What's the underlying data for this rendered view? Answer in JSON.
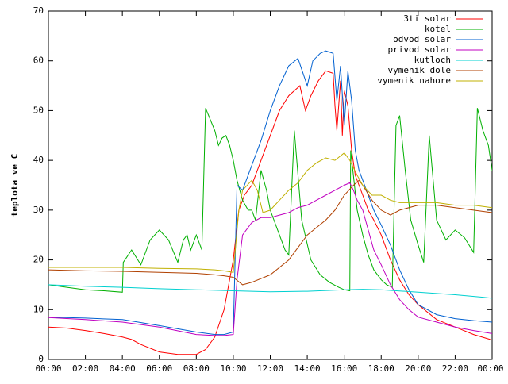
{
  "chart_data": {
    "type": "line",
    "title": "",
    "xlabel": "",
    "ylabel": "teplota ve C",
    "ylim": [
      0,
      70
    ],
    "xlim": [
      0,
      24
    ],
    "grid": false,
    "legend_position": "top-right",
    "y_ticks": [
      "0",
      "10",
      "20",
      "30",
      "40",
      "50",
      "60",
      "70"
    ],
    "x_ticks": [
      "00:00",
      "02:00",
      "04:00",
      "06:00",
      "08:00",
      "10:00",
      "12:00",
      "14:00",
      "16:00",
      "18:00",
      "20:00",
      "22:00",
      "00:00"
    ],
    "series": [
      {
        "name": "3ti solar",
        "color": "#ff0000",
        "points": [
          [
            0,
            6.5
          ],
          [
            1,
            6.3
          ],
          [
            2,
            5.8
          ],
          [
            3,
            5.2
          ],
          [
            4,
            4.5
          ],
          [
            4.5,
            4.0
          ],
          [
            5,
            3.0
          ],
          [
            6,
            1.5
          ],
          [
            7,
            1.0
          ],
          [
            8,
            1.0
          ],
          [
            8.5,
            2.0
          ],
          [
            9,
            4.5
          ],
          [
            9.5,
            10
          ],
          [
            10,
            20
          ],
          [
            10.3,
            30
          ],
          [
            10.6,
            33
          ],
          [
            11,
            35
          ],
          [
            11.5,
            40
          ],
          [
            12,
            45
          ],
          [
            12.5,
            50
          ],
          [
            13,
            53
          ],
          [
            13.6,
            55
          ],
          [
            13.9,
            50
          ],
          [
            14.2,
            53
          ],
          [
            14.6,
            56
          ],
          [
            15.0,
            58
          ],
          [
            15.4,
            57.5
          ],
          [
            15.5,
            51
          ],
          [
            15.6,
            46
          ],
          [
            15.8,
            56
          ],
          [
            15.9,
            45
          ],
          [
            16.0,
            54
          ],
          [
            16.2,
            51
          ],
          [
            16.4,
            42
          ],
          [
            16.6,
            37
          ],
          [
            16.8,
            35
          ],
          [
            17,
            33
          ],
          [
            17.3,
            30
          ],
          [
            17.6,
            28
          ],
          [
            18,
            25
          ],
          [
            18.5,
            20
          ],
          [
            19,
            16
          ],
          [
            19.5,
            13
          ],
          [
            20,
            11
          ],
          [
            21,
            8
          ],
          [
            22,
            6.5
          ],
          [
            23,
            5
          ],
          [
            23.9,
            4
          ]
        ]
      },
      {
        "name": "kotel",
        "color": "#00b000",
        "points": [
          [
            0,
            15
          ],
          [
            1,
            14.5
          ],
          [
            2,
            14
          ],
          [
            3,
            13.8
          ],
          [
            4.0,
            13.5
          ],
          [
            4.05,
            19.5
          ],
          [
            4.5,
            22
          ],
          [
            5,
            19
          ],
          [
            5.5,
            24
          ],
          [
            6,
            26
          ],
          [
            6.5,
            24
          ],
          [
            7,
            19.5
          ],
          [
            7.3,
            24
          ],
          [
            7.5,
            25
          ],
          [
            7.7,
            22
          ],
          [
            8,
            25
          ],
          [
            8.3,
            22
          ],
          [
            8.5,
            50.5
          ],
          [
            9,
            46
          ],
          [
            9.2,
            43
          ],
          [
            9.4,
            44.5
          ],
          [
            9.6,
            45.0
          ],
          [
            9.8,
            43
          ],
          [
            10,
            40
          ],
          [
            10.2,
            36
          ],
          [
            10.5,
            32
          ],
          [
            10.8,
            30
          ],
          [
            11,
            30
          ],
          [
            11.2,
            28
          ],
          [
            11.5,
            38
          ],
          [
            11.8,
            34
          ],
          [
            12,
            30
          ],
          [
            12.5,
            25
          ],
          [
            12.8,
            22
          ],
          [
            13.0,
            21
          ],
          [
            13.3,
            46
          ],
          [
            13.7,
            28
          ],
          [
            14.2,
            20
          ],
          [
            14.7,
            17
          ],
          [
            15.2,
            15.5
          ],
          [
            15.7,
            14.5
          ],
          [
            16.0,
            14
          ],
          [
            16.3,
            13.8
          ],
          [
            16.35,
            42
          ],
          [
            16.7,
            30
          ],
          [
            17,
            25
          ],
          [
            17.3,
            21
          ],
          [
            17.6,
            18
          ],
          [
            18,
            16
          ],
          [
            18.3,
            15
          ],
          [
            18.6,
            14.5
          ],
          [
            18.8,
            47
          ],
          [
            19.0,
            49
          ],
          [
            19.3,
            38
          ],
          [
            19.6,
            28
          ],
          [
            20,
            23
          ],
          [
            20.3,
            19.5
          ],
          [
            20.6,
            45
          ],
          [
            21,
            28
          ],
          [
            21.5,
            24
          ],
          [
            22,
            26
          ],
          [
            22.5,
            24.5
          ],
          [
            23.0,
            21.5
          ],
          [
            23.2,
            50.5
          ],
          [
            23.5,
            46
          ],
          [
            23.8,
            43
          ],
          [
            24,
            38
          ],
          [
            24.6,
            32
          ],
          [
            25,
            48.5
          ]
        ]
      },
      {
        "name": "odvod solar",
        "color": "#0060d0",
        "points": [
          [
            0,
            8.5
          ],
          [
            2,
            8.3
          ],
          [
            4,
            8.0
          ],
          [
            6,
            6.8
          ],
          [
            8,
            5.5
          ],
          [
            9,
            5.0
          ],
          [
            9.5,
            5.0
          ],
          [
            10,
            5.5
          ],
          [
            10.2,
            35
          ],
          [
            10.5,
            34
          ],
          [
            11,
            39
          ],
          [
            11.5,
            44
          ],
          [
            12,
            50
          ],
          [
            12.5,
            55
          ],
          [
            13,
            59
          ],
          [
            13.5,
            60.5
          ],
          [
            14,
            55
          ],
          [
            14.3,
            60
          ],
          [
            14.7,
            61.5
          ],
          [
            15.0,
            62
          ],
          [
            15.4,
            61.5
          ],
          [
            15.6,
            52
          ],
          [
            15.8,
            59
          ],
          [
            16.0,
            47
          ],
          [
            16.2,
            58
          ],
          [
            16.4,
            52
          ],
          [
            16.6,
            42
          ],
          [
            16.8,
            38
          ],
          [
            17.0,
            36
          ],
          [
            17.3,
            33
          ],
          [
            17.6,
            30
          ],
          [
            18,
            27
          ],
          [
            18.5,
            23
          ],
          [
            19,
            18
          ],
          [
            19.5,
            14
          ],
          [
            20,
            11
          ],
          [
            21,
            9
          ],
          [
            22,
            8.2
          ],
          [
            23,
            7.8
          ],
          [
            24,
            7.5
          ]
        ]
      },
      {
        "name": "privod solar",
        "color": "#c000c0",
        "points": [
          [
            0,
            8.4
          ],
          [
            2,
            8.0
          ],
          [
            4,
            7.5
          ],
          [
            6,
            6.5
          ],
          [
            8,
            5.0
          ],
          [
            9,
            4.8
          ],
          [
            9.5,
            4.8
          ],
          [
            10,
            5.0
          ],
          [
            10.2,
            16
          ],
          [
            10.5,
            25
          ],
          [
            11,
            27.5
          ],
          [
            11.5,
            28.5
          ],
          [
            12,
            28.5
          ],
          [
            12.5,
            29
          ],
          [
            13,
            29.5
          ],
          [
            13.5,
            30.5
          ],
          [
            14,
            31
          ],
          [
            14.5,
            32
          ],
          [
            15,
            33
          ],
          [
            15.5,
            34
          ],
          [
            16.0,
            35
          ],
          [
            16.3,
            35.5
          ],
          [
            16.5,
            34
          ],
          [
            16.7,
            32
          ],
          [
            17,
            30
          ],
          [
            17.3,
            26
          ],
          [
            17.6,
            22
          ],
          [
            18,
            19
          ],
          [
            18.5,
            15
          ],
          [
            19,
            12
          ],
          [
            19.5,
            10
          ],
          [
            20,
            8.5
          ],
          [
            21,
            7.5
          ],
          [
            22,
            6.5
          ],
          [
            23,
            5.8
          ],
          [
            24,
            5.2
          ]
        ]
      },
      {
        "name": "kutloch",
        "color": "#00d0d0",
        "points": [
          [
            0,
            15
          ],
          [
            2,
            14.7
          ],
          [
            4,
            14.5
          ],
          [
            6,
            14.2
          ],
          [
            8,
            14.0
          ],
          [
            10,
            13.8
          ],
          [
            12,
            13.6
          ],
          [
            14,
            13.7
          ],
          [
            16,
            14.0
          ],
          [
            17,
            14.1
          ],
          [
            18,
            14.0
          ],
          [
            20,
            13.5
          ],
          [
            22,
            13.0
          ],
          [
            23.5,
            12.5
          ],
          [
            24,
            12.3
          ]
        ]
      },
      {
        "name": "vymenik dole",
        "color": "#b04000",
        "points": [
          [
            0,
            18
          ],
          [
            2,
            17.8
          ],
          [
            4,
            17.7
          ],
          [
            6,
            17.5
          ],
          [
            8,
            17.3
          ],
          [
            9,
            17.0
          ],
          [
            9.5,
            16.8
          ],
          [
            10,
            16.5
          ],
          [
            10.5,
            15.0
          ],
          [
            11,
            15.5
          ],
          [
            12,
            17
          ],
          [
            13,
            20
          ],
          [
            14,
            25
          ],
          [
            15,
            28
          ],
          [
            15.5,
            30
          ],
          [
            16,
            33
          ],
          [
            16.5,
            35
          ],
          [
            16.8,
            36
          ],
          [
            17,
            35
          ],
          [
            17.5,
            32
          ],
          [
            18,
            30
          ],
          [
            18.5,
            29
          ],
          [
            19,
            30
          ],
          [
            20,
            31
          ],
          [
            21,
            31
          ],
          [
            22,
            30.5
          ],
          [
            23,
            30
          ],
          [
            24,
            29.5
          ],
          [
            24.5,
            27
          ],
          [
            25,
            26
          ]
        ]
      },
      {
        "name": "vymenik nahore",
        "color": "#c0b000",
        "points": [
          [
            0,
            18.5
          ],
          [
            2,
            18.5
          ],
          [
            4,
            18.5
          ],
          [
            6,
            18.3
          ],
          [
            8,
            18.2
          ],
          [
            9,
            18.0
          ],
          [
            9.5,
            17.8
          ],
          [
            10,
            17.5
          ],
          [
            10.3,
            30
          ],
          [
            10.5,
            34
          ],
          [
            11,
            36
          ],
          [
            11.3,
            34
          ],
          [
            11.6,
            29.5
          ],
          [
            12,
            30
          ],
          [
            12.5,
            32
          ],
          [
            13,
            34
          ],
          [
            13.5,
            35.5
          ],
          [
            14,
            38
          ],
          [
            14.5,
            39.5
          ],
          [
            15,
            40.5
          ],
          [
            15.5,
            40
          ],
          [
            16,
            41.5
          ],
          [
            16.3,
            40
          ],
          [
            16.7,
            37
          ],
          [
            17,
            35
          ],
          [
            17.5,
            33
          ],
          [
            18,
            33
          ],
          [
            18.5,
            32
          ],
          [
            19,
            31.5
          ],
          [
            20,
            31.5
          ],
          [
            21,
            31.5
          ],
          [
            22,
            31
          ],
          [
            23,
            31
          ],
          [
            24,
            30.5
          ],
          [
            24.6,
            30
          ]
        ]
      }
    ]
  }
}
